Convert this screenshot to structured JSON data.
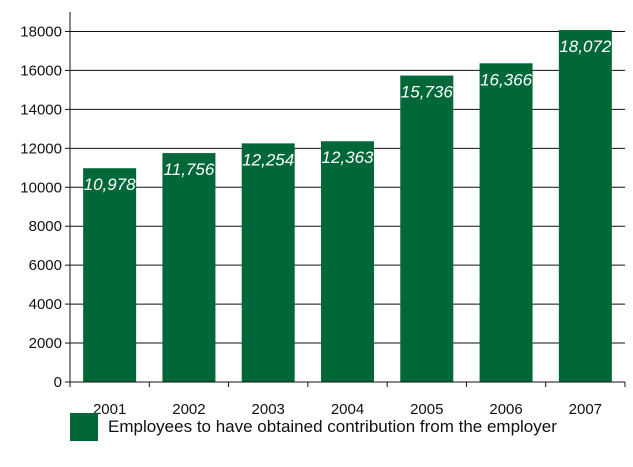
{
  "chart_data": {
    "type": "bar",
    "title": "",
    "xlabel": "",
    "ylabel": "",
    "categories": [
      "2001",
      "2002",
      "2003",
      "2004",
      "2005",
      "2006",
      "2007"
    ],
    "series": [
      {
        "name": "Employees to have obtained contribution from the employer",
        "values": [
          10978,
          11756,
          12254,
          12363,
          15736,
          16366,
          18072
        ],
        "labels": [
          "10,978",
          "11,756",
          "12,254",
          "12,363",
          "15,736",
          "16,366",
          "18,072"
        ]
      }
    ],
    "ylim": [
      0,
      19000
    ],
    "yticks": [
      0,
      2000,
      4000,
      6000,
      8000,
      10000,
      12000,
      14000,
      16000,
      18000
    ],
    "grid": true,
    "legend_position": "bottom",
    "colors": {
      "bar": "#006838",
      "grid": "#111111",
      "axis": "#111111"
    }
  },
  "legend": {
    "label": "Employees to have obtained contribution from the employer"
  }
}
